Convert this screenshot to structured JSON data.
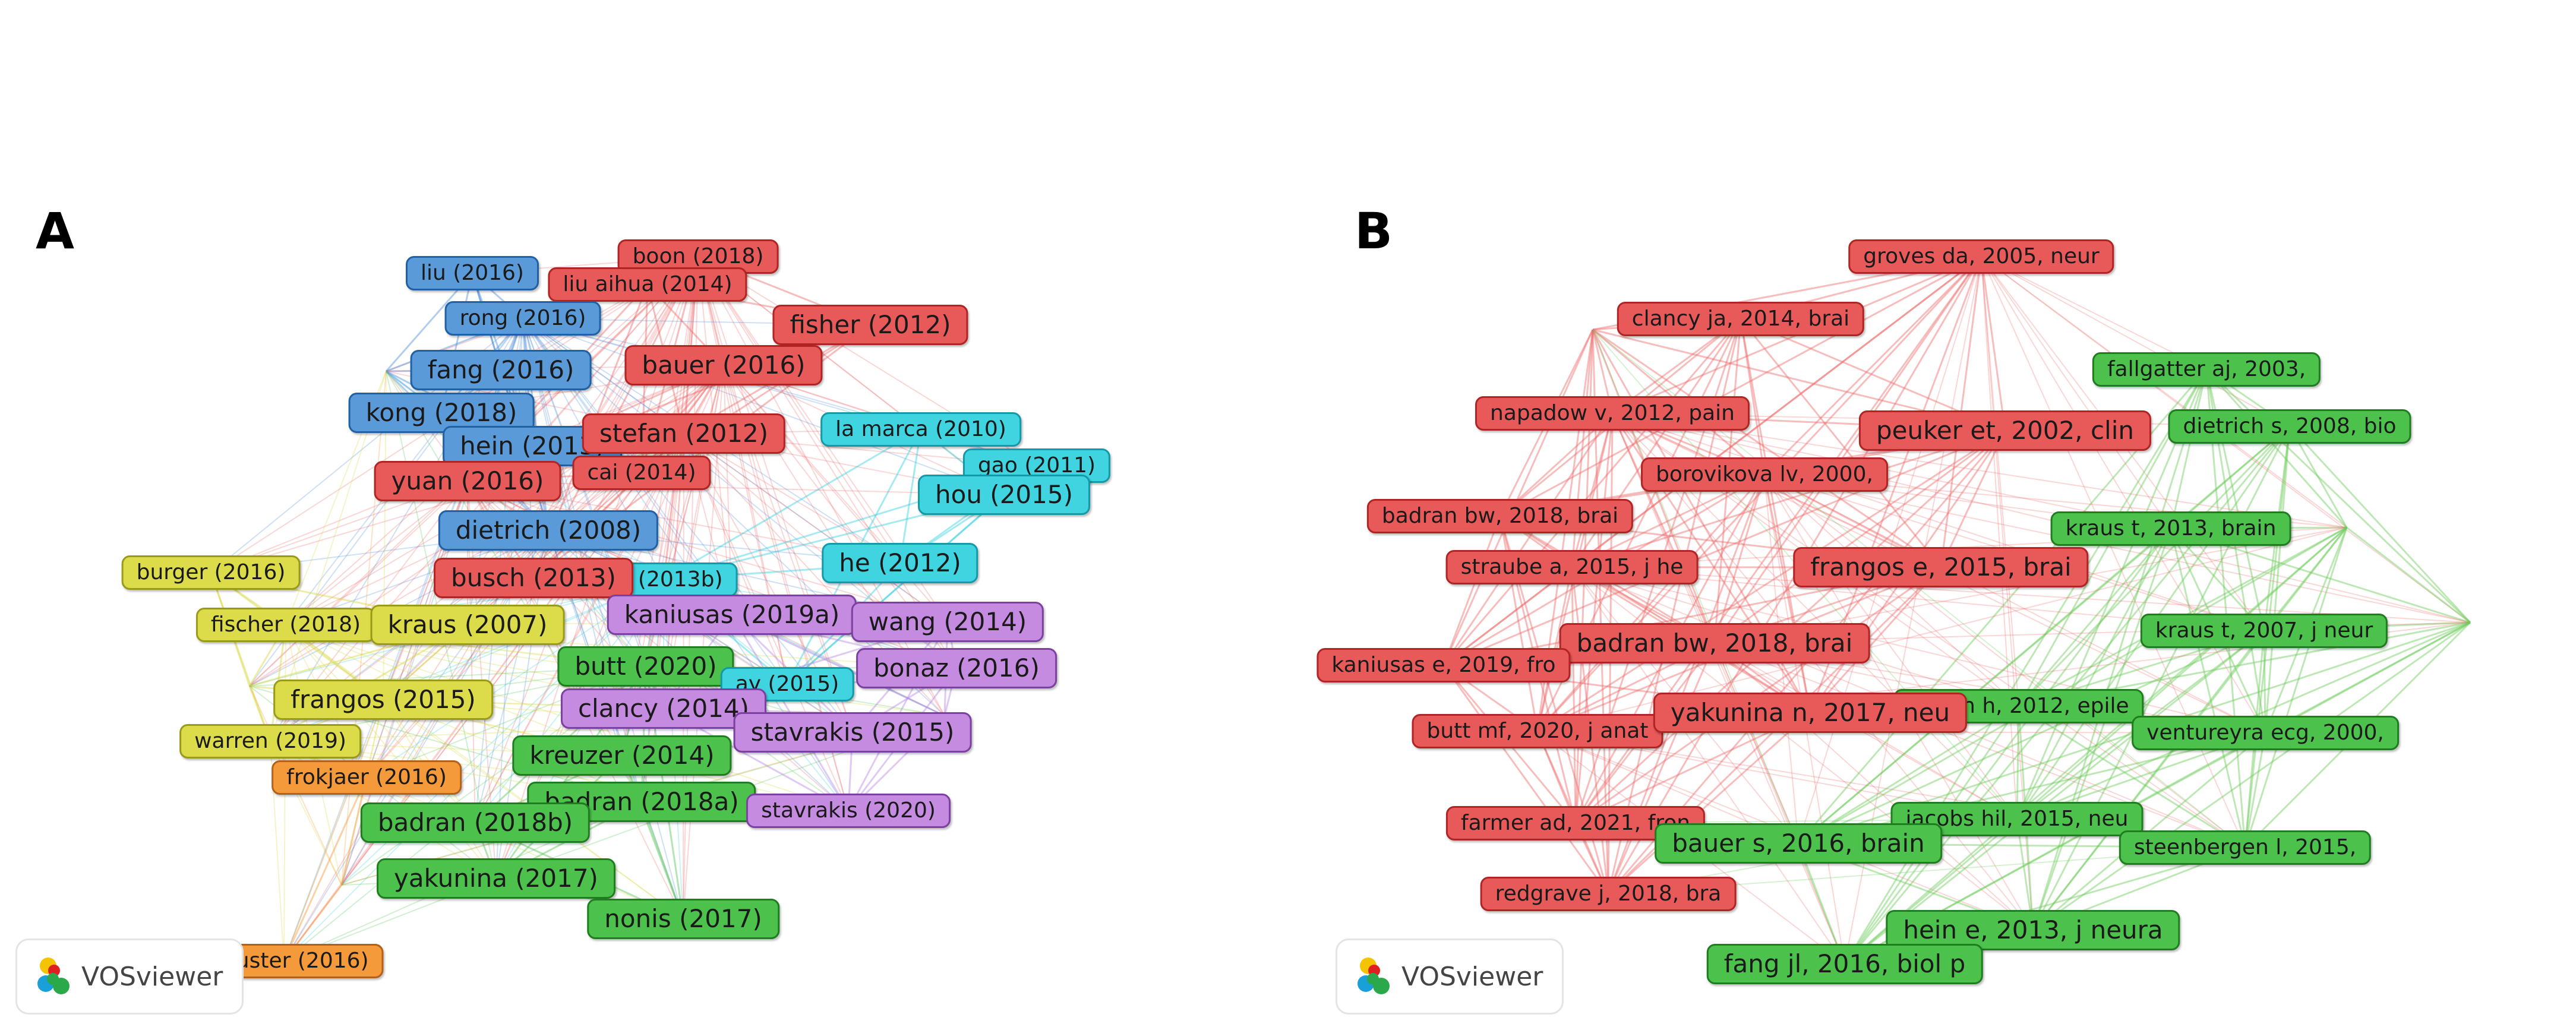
{
  "panels": [
    {
      "letter": "A",
      "watermark": "VOSviewer",
      "colors": {
        "red": {
          "fill": "#e85a5a",
          "border": "#b02424",
          "line": "#ee6a6a"
        },
        "blue": {
          "fill": "#5b9ad9",
          "border": "#2060a4",
          "line": "#4f8fdc"
        },
        "cyan": {
          "fill": "#3fd4e0",
          "border": "#1499a8",
          "line": "#38d0de"
        },
        "yellow": {
          "fill": "#dcdc4a",
          "border": "#9a9a1a",
          "line": "#d6d640"
        },
        "green": {
          "fill": "#4cc24c",
          "border": "#1f7d1f",
          "line": "#58c458"
        },
        "purple": {
          "fill": "#c48be0",
          "border": "#7c40a0",
          "line": "#b888e8"
        },
        "orange": {
          "fill": "#f59a3a",
          "border": "#b3601a",
          "line": "#f59a3a"
        }
      },
      "nodes": [
        {
          "label": "boon (2018)",
          "cluster": "red"
        },
        {
          "label": "liu (2016)",
          "cluster": "blue"
        },
        {
          "label": "liu aihua (2014)",
          "cluster": "red"
        },
        {
          "label": "rong (2016)",
          "cluster": "blue"
        },
        {
          "label": "fisher (2012)",
          "cluster": "red"
        },
        {
          "label": "fang (2016)",
          "cluster": "blue"
        },
        {
          "label": "bauer (2016)",
          "cluster": "red"
        },
        {
          "label": "kong (2018)",
          "cluster": "blue"
        },
        {
          "label": "hein (2013)",
          "cluster": "blue"
        },
        {
          "label": "stefan (2012)",
          "cluster": "red"
        },
        {
          "label": "la marca (2010)",
          "cluster": "cyan"
        },
        {
          "label": "gao (2011)",
          "cluster": "cyan"
        },
        {
          "label": "yuan (2016)",
          "cluster": "red"
        },
        {
          "label": "cai (2014)",
          "cluster": "red"
        },
        {
          "label": "hou (2015)",
          "cluster": "cyan"
        },
        {
          "label": "dietrich (2008)",
          "cluster": "blue"
        },
        {
          "label": "he (2012)",
          "cluster": "cyan"
        },
        {
          "label": "burger (2016)",
          "cluster": "yellow"
        },
        {
          "label": "he (2013b)",
          "cluster": "cyan"
        },
        {
          "label": "busch (2013)",
          "cluster": "red"
        },
        {
          "label": "kaniusas (2019a)",
          "cluster": "purple"
        },
        {
          "label": "fischer (2018)",
          "cluster": "yellow"
        },
        {
          "label": "kraus (2007)",
          "cluster": "yellow"
        },
        {
          "label": "wang (2014)",
          "cluster": "purple"
        },
        {
          "label": "butt (2020)",
          "cluster": "green"
        },
        {
          "label": "bonaz (2016)",
          "cluster": "purple"
        },
        {
          "label": "ay (2015)",
          "cluster": "cyan"
        },
        {
          "label": "frangos (2015)",
          "cluster": "yellow"
        },
        {
          "label": "clancy (2014)",
          "cluster": "purple"
        },
        {
          "label": "stavrakis (2015)",
          "cluster": "purple"
        },
        {
          "label": "warren (2019)",
          "cluster": "yellow"
        },
        {
          "label": "kreuzer (2014)",
          "cluster": "green"
        },
        {
          "label": "frokjaer (2016)",
          "cluster": "orange"
        },
        {
          "label": "badran (2018a)",
          "cluster": "green"
        },
        {
          "label": "badran (2018b)",
          "cluster": "green"
        },
        {
          "label": "stavrakis (2020)",
          "cluster": "purple"
        },
        {
          "label": "yakunina (2017)",
          "cluster": "green"
        },
        {
          "label": "nonis (2017)",
          "cluster": "green"
        },
        {
          "label": "schuster (2016)",
          "cluster": "orange"
        }
      ]
    },
    {
      "letter": "B",
      "watermark": "VOSviewer",
      "colors": {
        "red": {
          "fill": "#e85a5a",
          "border": "#b02424",
          "line": "#ee6a6a"
        },
        "green": {
          "fill": "#4cc24c",
          "border": "#1f7d1f",
          "line": "#6ccc5c"
        }
      },
      "nodes": [
        {
          "label": "groves da, 2005, neur",
          "cluster": "red"
        },
        {
          "label": "clancy ja, 2014, brai",
          "cluster": "red"
        },
        {
          "label": "fallgatter aj, 2003,",
          "cluster": "green"
        },
        {
          "label": "napadow v, 2012, pain",
          "cluster": "red"
        },
        {
          "label": "peuker et, 2002, clin",
          "cluster": "red"
        },
        {
          "label": "dietrich s, 2008, bio",
          "cluster": "green"
        },
        {
          "label": "borovikova lv, 2000,",
          "cluster": "red"
        },
        {
          "label": "badran bw, 2018, brai",
          "cluster": "red"
        },
        {
          "label": "kraus t, 2013, brain",
          "cluster": "green"
        },
        {
          "label": "straube a, 2015, j he",
          "cluster": "red"
        },
        {
          "label": "frangos e, 2015, brai",
          "cluster": "red"
        },
        {
          "label": "kraus t, 2007, j neur",
          "cluster": "green"
        },
        {
          "label": "badran bw, 2018, brai",
          "cluster": "red"
        },
        {
          "label": "kaniusas e, 2019, fro",
          "cluster": "red"
        },
        {
          "label": "stefan h, 2012, epile",
          "cluster": "green"
        },
        {
          "label": "butt mf, 2020, j anat",
          "cluster": "red"
        },
        {
          "label": "yakunina n, 2017, neu",
          "cluster": "red"
        },
        {
          "label": "ventureyra ecg, 2000,",
          "cluster": "green"
        },
        {
          "label": "jacobs hil, 2015, neu",
          "cluster": "green"
        },
        {
          "label": "farmer ad, 2021, fron",
          "cluster": "red"
        },
        {
          "label": "bauer s, 2016, brain",
          "cluster": "green"
        },
        {
          "label": "steenbergen l, 2015,",
          "cluster": "green"
        },
        {
          "label": "redgrave j, 2018, bra",
          "cluster": "red"
        },
        {
          "label": "hein e, 2013, j neura",
          "cluster": "green"
        },
        {
          "label": "fang jl, 2016, biol p",
          "cluster": "green"
        }
      ]
    }
  ]
}
